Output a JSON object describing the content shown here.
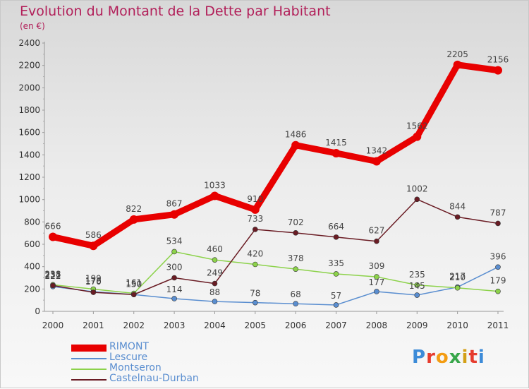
{
  "chart_data": {
    "type": "line",
    "title": "Evolution du Montant de la Dette par Habitant",
    "subtitle": "(en €)",
    "x": [
      "2000",
      "2001",
      "2002",
      "2003",
      "2004",
      "2005",
      "2006",
      "2007",
      "2008",
      "2009",
      "2010",
      "2011"
    ],
    "ylim": [
      0,
      2400
    ],
    "yticks": [
      0,
      200,
      400,
      600,
      800,
      1000,
      1200,
      1400,
      1600,
      1800,
      2000,
      2200,
      2400
    ],
    "grid": false,
    "legend_position": "bottom-left",
    "series": [
      {
        "name": "RIMONT",
        "color": "#e80000",
        "values": [
          666,
          586,
          822,
          867,
          1033,
          910,
          1486,
          1415,
          1342,
          1562,
          2205,
          2156
        ]
      },
      {
        "name": "Lescure",
        "color": "#5a8ed0",
        "values": [
          222,
          176,
          150,
          114,
          88,
          78,
          68,
          57,
          177,
          145,
          217,
          396
        ]
      },
      {
        "name": "Montseron",
        "color": "#8cd24a",
        "values": [
          238,
          199,
          161,
          534,
          460,
          420,
          378,
          335,
          309,
          235,
          210,
          179
        ]
      },
      {
        "name": "Castelnau-Durban",
        "color": "#6a1c24",
        "values": [
          231,
          170,
          150,
          300,
          249,
          733,
          702,
          664,
          627,
          1002,
          844,
          787
        ]
      }
    ]
  },
  "brand": {
    "name": "Proxiti"
  }
}
